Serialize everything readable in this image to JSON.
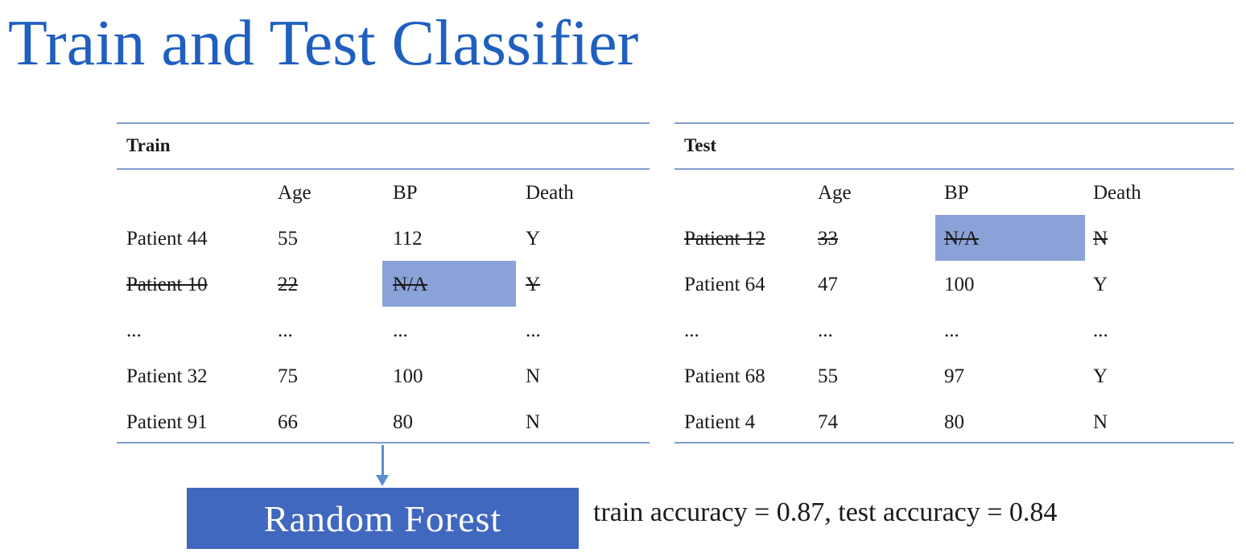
{
  "slide": {
    "title": "Train and Test Classifier",
    "model_label": "Random Forest",
    "accuracy_text": "train accuracy = 0.87, test accuracy = 0.84",
    "colors": {
      "title": "#1f5fbf",
      "highlight": "#8aa2d8",
      "model_box": "#4168bf",
      "rule": "#7f9bd0"
    }
  },
  "train": {
    "title": "Train",
    "columns": [
      "",
      "Age",
      "BP",
      "Death"
    ],
    "rows": [
      {
        "cells": [
          "Patient 44",
          "55",
          "112",
          "Y"
        ],
        "removed": false
      },
      {
        "cells": [
          "Patient 10",
          "22",
          "N/A",
          "Y"
        ],
        "removed": true,
        "highlight_col": 2
      },
      {
        "cells": [
          "...",
          "...",
          "...",
          "..."
        ],
        "removed": false
      },
      {
        "cells": [
          "Patient 32",
          "75",
          "100",
          "N"
        ],
        "removed": false
      },
      {
        "cells": [
          "Patient 91",
          "66",
          "80",
          "N"
        ],
        "removed": false
      }
    ]
  },
  "test": {
    "title": "Test",
    "columns": [
      "",
      "Age",
      "BP",
      "Death"
    ],
    "rows": [
      {
        "cells": [
          "Patient 12",
          "33",
          "N/A",
          "N"
        ],
        "removed": true,
        "highlight_col": 2
      },
      {
        "cells": [
          "Patient 64",
          "47",
          "100",
          "Y"
        ],
        "removed": false
      },
      {
        "cells": [
          "...",
          "...",
          "...",
          "..."
        ],
        "removed": false
      },
      {
        "cells": [
          "Patient 68",
          "55",
          "97",
          "Y"
        ],
        "removed": false
      },
      {
        "cells": [
          "Patient 4",
          "74",
          "80",
          "N"
        ],
        "removed": false
      }
    ]
  }
}
